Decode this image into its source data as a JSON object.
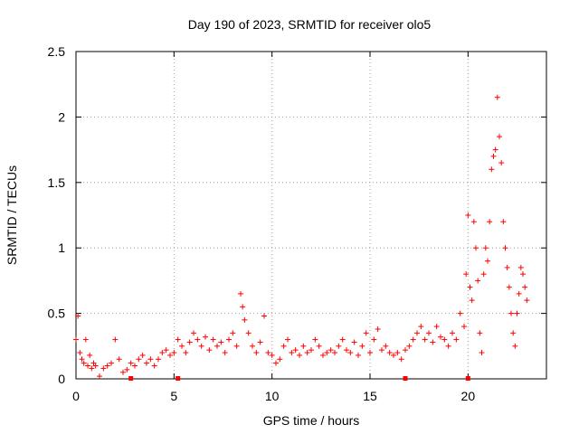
{
  "chart_data": {
    "type": "scatter",
    "title": "Day 190 of 2023, SRMTID for receiver olo5",
    "xlabel": "GPS time / hours",
    "ylabel": "SRMTID / TECUs",
    "xlim": [
      0,
      24
    ],
    "ylim": [
      0,
      2.5
    ],
    "xticks": [
      0,
      5,
      10,
      15,
      20
    ],
    "xtick_labels": [
      "0",
      "5",
      "10",
      "15",
      "20"
    ],
    "yticks": [
      0,
      0.5,
      1,
      1.5,
      2,
      2.5
    ],
    "ytick_labels": [
      "0",
      "0.5",
      "1",
      "1.5",
      "2",
      "2.5"
    ],
    "grid": true,
    "marker": "plus",
    "color": "#ff0000",
    "series": [
      {
        "name": "SRMTID",
        "x": [
          0.0,
          0.1,
          0.2,
          0.3,
          0.4,
          0.5,
          0.6,
          0.7,
          0.8,
          0.9,
          1.0,
          1.2,
          1.4,
          1.6,
          1.8,
          2.0,
          2.2,
          2.4,
          2.6,
          2.8,
          3.0,
          3.2,
          3.4,
          3.6,
          3.8,
          4.0,
          4.2,
          4.4,
          4.6,
          4.8,
          5.0,
          5.2,
          5.4,
          5.6,
          5.8,
          6.0,
          6.2,
          6.4,
          6.6,
          6.8,
          7.0,
          7.2,
          7.4,
          7.6,
          7.8,
          8.0,
          8.2,
          8.4,
          8.5,
          8.6,
          8.8,
          9.0,
          9.2,
          9.4,
          9.6,
          9.8,
          10.0,
          10.2,
          10.4,
          10.6,
          10.8,
          11.0,
          11.2,
          11.4,
          11.6,
          11.8,
          12.0,
          12.2,
          12.4,
          12.6,
          12.8,
          13.0,
          13.2,
          13.4,
          13.6,
          13.8,
          14.0,
          14.2,
          14.4,
          14.6,
          14.8,
          15.0,
          15.2,
          15.4,
          15.6,
          15.8,
          16.0,
          16.2,
          16.4,
          16.6,
          16.8,
          17.0,
          17.2,
          17.4,
          17.6,
          17.8,
          18.0,
          18.2,
          18.4,
          18.6,
          18.8,
          19.0,
          19.2,
          19.4,
          19.6,
          19.8,
          19.9,
          20.0,
          20.1,
          20.2,
          20.3,
          20.4,
          20.5,
          20.6,
          20.7,
          20.8,
          20.9,
          21.0,
          21.1,
          21.2,
          21.3,
          21.4,
          21.5,
          21.6,
          21.7,
          21.8,
          21.9,
          22.0,
          22.1,
          22.2,
          22.3,
          22.4,
          22.5,
          22.6,
          22.7,
          22.8,
          22.9,
          23.0
        ],
        "y": [
          0.3,
          0.48,
          0.2,
          0.15,
          0.12,
          0.3,
          0.1,
          0.18,
          0.08,
          0.12,
          0.1,
          0.02,
          0.08,
          0.1,
          0.12,
          0.3,
          0.15,
          0.05,
          0.07,
          0.12,
          0.1,
          0.15,
          0.18,
          0.12,
          0.15,
          0.1,
          0.15,
          0.2,
          0.22,
          0.18,
          0.2,
          0.3,
          0.25,
          0.2,
          0.28,
          0.35,
          0.3,
          0.25,
          0.32,
          0.22,
          0.3,
          0.25,
          0.28,
          0.2,
          0.3,
          0.35,
          0.25,
          0.65,
          0.55,
          0.45,
          0.35,
          0.25,
          0.2,
          0.28,
          0.48,
          0.2,
          0.18,
          0.12,
          0.15,
          0.25,
          0.3,
          0.2,
          0.22,
          0.18,
          0.25,
          0.2,
          0.22,
          0.3,
          0.25,
          0.18,
          0.2,
          0.22,
          0.2,
          0.25,
          0.3,
          0.22,
          0.2,
          0.28,
          0.18,
          0.25,
          0.35,
          0.2,
          0.3,
          0.38,
          0.22,
          0.25,
          0.2,
          0.18,
          0.2,
          0.15,
          0.22,
          0.25,
          0.3,
          0.35,
          0.4,
          0.3,
          0.35,
          0.28,
          0.4,
          0.32,
          0.3,
          0.25,
          0.35,
          0.3,
          0.5,
          0.4,
          0.8,
          1.25,
          0.7,
          0.6,
          1.2,
          1.0,
          0.75,
          0.35,
          0.2,
          0.8,
          1.0,
          0.9,
          1.2,
          1.6,
          1.7,
          1.75,
          2.15,
          1.85,
          1.65,
          1.2,
          1.0,
          0.85,
          0.7,
          0.5,
          0.35,
          0.25,
          0.5,
          0.65,
          0.85,
          0.8,
          0.7,
          0.6
        ]
      }
    ],
    "bottom_markers_x": [
      2.8,
      5.2,
      16.8,
      20.0
    ]
  }
}
